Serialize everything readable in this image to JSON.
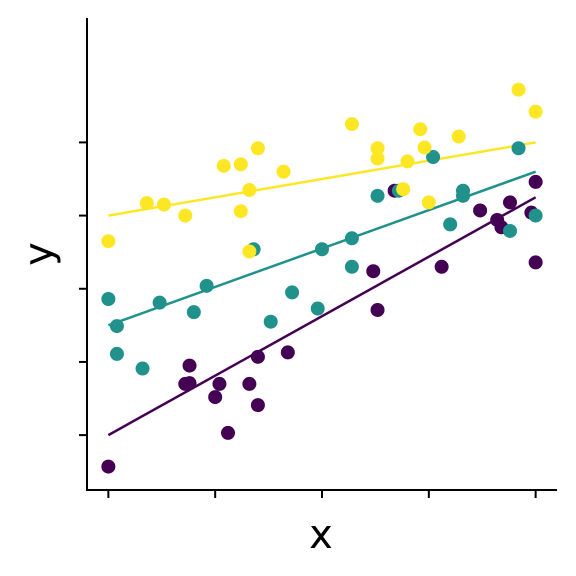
{
  "chart_data": {
    "type": "scatter",
    "title": "",
    "xlabel": "x",
    "ylabel": "y",
    "xlim": [
      -0.05,
      1.05
    ],
    "ylim": [
      -0.75,
      5.7
    ],
    "x_ticks": [
      0,
      0.25,
      0.5,
      0.75,
      1.0
    ],
    "y_ticks": [
      0,
      1,
      2,
      3,
      4
    ],
    "show_tick_labels": false,
    "grid": false,
    "legend": "none",
    "series": [
      {
        "color": "#440154",
        "fit": {
          "x": [
            0,
            1
          ],
          "y": [
            0.0,
            3.25
          ]
        },
        "points": [
          [
            0.0,
            -0.43
          ],
          [
            0.19,
            0.95
          ],
          [
            0.19,
            0.71
          ],
          [
            0.18,
            0.7
          ],
          [
            0.26,
            0.7
          ],
          [
            0.25,
            0.52
          ],
          [
            0.28,
            0.03
          ],
          [
            0.33,
            0.7
          ],
          [
            0.35,
            0.41
          ],
          [
            0.35,
            1.07
          ],
          [
            0.42,
            1.13
          ],
          [
            0.62,
            2.24
          ],
          [
            0.63,
            1.71
          ],
          [
            0.67,
            3.34
          ],
          [
            0.78,
            2.3
          ],
          [
            0.87,
            3.07
          ],
          [
            0.91,
            2.94
          ],
          [
            0.92,
            2.84
          ],
          [
            0.94,
            3.18
          ],
          [
            0.99,
            3.04
          ],
          [
            1.0,
            3.46
          ],
          [
            1.0,
            2.36
          ]
        ]
      },
      {
        "color": "#21918c",
        "fit": {
          "x": [
            0,
            1
          ],
          "y": [
            1.5,
            3.6
          ]
        },
        "points": [
          [
            0.0,
            1.86
          ],
          [
            0.02,
            1.49
          ],
          [
            0.02,
            1.11
          ],
          [
            0.08,
            0.91
          ],
          [
            0.12,
            1.81
          ],
          [
            0.2,
            1.68
          ],
          [
            0.23,
            2.04
          ],
          [
            0.34,
            2.54
          ],
          [
            0.38,
            1.55
          ],
          [
            0.43,
            1.95
          ],
          [
            0.49,
            1.73
          ],
          [
            0.5,
            2.54
          ],
          [
            0.57,
            2.3
          ],
          [
            0.57,
            2.69
          ],
          [
            0.63,
            3.27
          ],
          [
            0.68,
            3.34
          ],
          [
            0.76,
            3.8
          ],
          [
            0.8,
            2.88
          ],
          [
            0.83,
            3.34
          ],
          [
            0.83,
            3.27
          ],
          [
            0.94,
            2.79
          ],
          [
            0.96,
            3.92
          ],
          [
            1.0,
            3.0
          ]
        ]
      },
      {
        "color": "#fde725",
        "fit": {
          "x": [
            0,
            1
          ],
          "y": [
            3.0,
            4.0
          ]
        },
        "points": [
          [
            0.0,
            2.65
          ],
          [
            0.09,
            3.17
          ],
          [
            0.13,
            3.15
          ],
          [
            0.18,
            3.0
          ],
          [
            0.27,
            3.68
          ],
          [
            0.31,
            3.06
          ],
          [
            0.31,
            3.7
          ],
          [
            0.33,
            3.35
          ],
          [
            0.33,
            2.51
          ],
          [
            0.35,
            3.92
          ],
          [
            0.41,
            3.6
          ],
          [
            0.57,
            4.25
          ],
          [
            0.63,
            3.92
          ],
          [
            0.63,
            3.78
          ],
          [
            0.69,
            3.36
          ],
          [
            0.7,
            3.74
          ],
          [
            0.73,
            4.18
          ],
          [
            0.74,
            3.93
          ],
          [
            0.75,
            3.18
          ],
          [
            0.82,
            4.08
          ],
          [
            0.96,
            4.72
          ],
          [
            1.0,
            4.42
          ]
        ]
      }
    ]
  }
}
